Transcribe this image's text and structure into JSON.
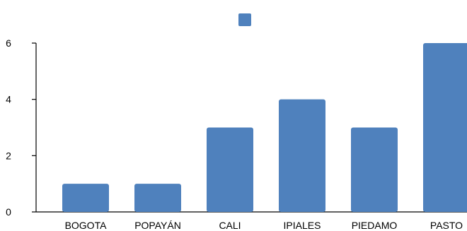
{
  "chart_data": {
    "type": "bar",
    "categories": [
      "BOGOTA",
      "POPAYÁN",
      "CALI",
      "IPIALES",
      "PIEDAMO",
      "PASTO"
    ],
    "series": [
      {
        "values": [
          1,
          1,
          3,
          4,
          3,
          6
        ]
      }
    ],
    "ylim": [
      0,
      6
    ],
    "yticks": [
      0,
      2,
      4,
      6
    ],
    "legend": "top-center",
    "grid": false,
    "colors": {
      "bar": "#4f81bd"
    }
  }
}
